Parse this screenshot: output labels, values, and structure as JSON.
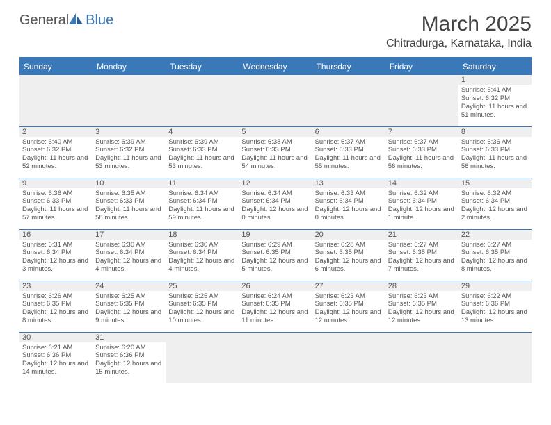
{
  "brand": {
    "part1": "General",
    "part2": "Blue"
  },
  "title": "March 2025",
  "location": "Chitradurga, Karnataka, India",
  "colors": {
    "accent": "#3b78b8",
    "header_text": "#ffffff",
    "body_text": "#555555",
    "bg": "#ffffff",
    "alt_bg": "#efefef"
  },
  "typography": {
    "title_fontsize": 30,
    "location_fontsize": 16,
    "dayheader_fontsize": 12,
    "cell_fontsize": 9.5
  },
  "day_headers": [
    "Sunday",
    "Monday",
    "Tuesday",
    "Wednesday",
    "Thursday",
    "Friday",
    "Saturday"
  ],
  "weeks": [
    [
      null,
      null,
      null,
      null,
      null,
      null,
      {
        "n": "1",
        "sr": "Sunrise: 6:41 AM",
        "ss": "Sunset: 6:32 PM",
        "dl": "Daylight: 11 hours and 51 minutes."
      }
    ],
    [
      {
        "n": "2",
        "sr": "Sunrise: 6:40 AM",
        "ss": "Sunset: 6:32 PM",
        "dl": "Daylight: 11 hours and 52 minutes."
      },
      {
        "n": "3",
        "sr": "Sunrise: 6:39 AM",
        "ss": "Sunset: 6:32 PM",
        "dl": "Daylight: 11 hours and 53 minutes."
      },
      {
        "n": "4",
        "sr": "Sunrise: 6:39 AM",
        "ss": "Sunset: 6:33 PM",
        "dl": "Daylight: 11 hours and 53 minutes."
      },
      {
        "n": "5",
        "sr": "Sunrise: 6:38 AM",
        "ss": "Sunset: 6:33 PM",
        "dl": "Daylight: 11 hours and 54 minutes."
      },
      {
        "n": "6",
        "sr": "Sunrise: 6:37 AM",
        "ss": "Sunset: 6:33 PM",
        "dl": "Daylight: 11 hours and 55 minutes."
      },
      {
        "n": "7",
        "sr": "Sunrise: 6:37 AM",
        "ss": "Sunset: 6:33 PM",
        "dl": "Daylight: 11 hours and 56 minutes."
      },
      {
        "n": "8",
        "sr": "Sunrise: 6:36 AM",
        "ss": "Sunset: 6:33 PM",
        "dl": "Daylight: 11 hours and 56 minutes."
      }
    ],
    [
      {
        "n": "9",
        "sr": "Sunrise: 6:36 AM",
        "ss": "Sunset: 6:33 PM",
        "dl": "Daylight: 11 hours and 57 minutes."
      },
      {
        "n": "10",
        "sr": "Sunrise: 6:35 AM",
        "ss": "Sunset: 6:33 PM",
        "dl": "Daylight: 11 hours and 58 minutes."
      },
      {
        "n": "11",
        "sr": "Sunrise: 6:34 AM",
        "ss": "Sunset: 6:34 PM",
        "dl": "Daylight: 11 hours and 59 minutes."
      },
      {
        "n": "12",
        "sr": "Sunrise: 6:34 AM",
        "ss": "Sunset: 6:34 PM",
        "dl": "Daylight: 12 hours and 0 minutes."
      },
      {
        "n": "13",
        "sr": "Sunrise: 6:33 AM",
        "ss": "Sunset: 6:34 PM",
        "dl": "Daylight: 12 hours and 0 minutes."
      },
      {
        "n": "14",
        "sr": "Sunrise: 6:32 AM",
        "ss": "Sunset: 6:34 PM",
        "dl": "Daylight: 12 hours and 1 minute."
      },
      {
        "n": "15",
        "sr": "Sunrise: 6:32 AM",
        "ss": "Sunset: 6:34 PM",
        "dl": "Daylight: 12 hours and 2 minutes."
      }
    ],
    [
      {
        "n": "16",
        "sr": "Sunrise: 6:31 AM",
        "ss": "Sunset: 6:34 PM",
        "dl": "Daylight: 12 hours and 3 minutes."
      },
      {
        "n": "17",
        "sr": "Sunrise: 6:30 AM",
        "ss": "Sunset: 6:34 PM",
        "dl": "Daylight: 12 hours and 4 minutes."
      },
      {
        "n": "18",
        "sr": "Sunrise: 6:30 AM",
        "ss": "Sunset: 6:34 PM",
        "dl": "Daylight: 12 hours and 4 minutes."
      },
      {
        "n": "19",
        "sr": "Sunrise: 6:29 AM",
        "ss": "Sunset: 6:35 PM",
        "dl": "Daylight: 12 hours and 5 minutes."
      },
      {
        "n": "20",
        "sr": "Sunrise: 6:28 AM",
        "ss": "Sunset: 6:35 PM",
        "dl": "Daylight: 12 hours and 6 minutes."
      },
      {
        "n": "21",
        "sr": "Sunrise: 6:27 AM",
        "ss": "Sunset: 6:35 PM",
        "dl": "Daylight: 12 hours and 7 minutes."
      },
      {
        "n": "22",
        "sr": "Sunrise: 6:27 AM",
        "ss": "Sunset: 6:35 PM",
        "dl": "Daylight: 12 hours and 8 minutes."
      }
    ],
    [
      {
        "n": "23",
        "sr": "Sunrise: 6:26 AM",
        "ss": "Sunset: 6:35 PM",
        "dl": "Daylight: 12 hours and 8 minutes."
      },
      {
        "n": "24",
        "sr": "Sunrise: 6:25 AM",
        "ss": "Sunset: 6:35 PM",
        "dl": "Daylight: 12 hours and 9 minutes."
      },
      {
        "n": "25",
        "sr": "Sunrise: 6:25 AM",
        "ss": "Sunset: 6:35 PM",
        "dl": "Daylight: 12 hours and 10 minutes."
      },
      {
        "n": "26",
        "sr": "Sunrise: 6:24 AM",
        "ss": "Sunset: 6:35 PM",
        "dl": "Daylight: 12 hours and 11 minutes."
      },
      {
        "n": "27",
        "sr": "Sunrise: 6:23 AM",
        "ss": "Sunset: 6:35 PM",
        "dl": "Daylight: 12 hours and 12 minutes."
      },
      {
        "n": "28",
        "sr": "Sunrise: 6:23 AM",
        "ss": "Sunset: 6:35 PM",
        "dl": "Daylight: 12 hours and 12 minutes."
      },
      {
        "n": "29",
        "sr": "Sunrise: 6:22 AM",
        "ss": "Sunset: 6:36 PM",
        "dl": "Daylight: 12 hours and 13 minutes."
      }
    ],
    [
      {
        "n": "30",
        "sr": "Sunrise: 6:21 AM",
        "ss": "Sunset: 6:36 PM",
        "dl": "Daylight: 12 hours and 14 minutes."
      },
      {
        "n": "31",
        "sr": "Sunrise: 6:20 AM",
        "ss": "Sunset: 6:36 PM",
        "dl": "Daylight: 12 hours and 15 minutes."
      },
      null,
      null,
      null,
      null,
      null
    ]
  ]
}
